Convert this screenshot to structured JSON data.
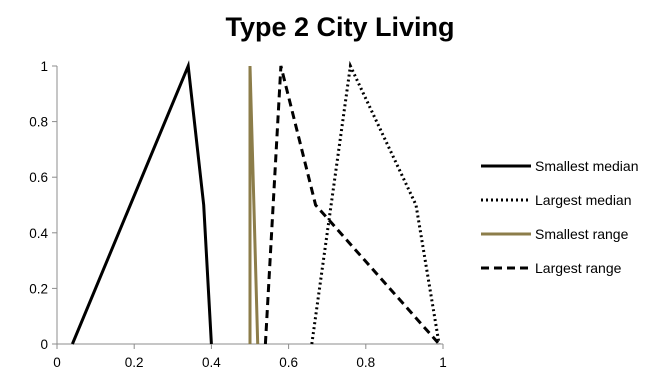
{
  "chart_data": {
    "type": "line",
    "title": "Type 2 City Living",
    "xlabel": "",
    "ylabel": "",
    "xlim": [
      0,
      1
    ],
    "ylim": [
      0,
      1
    ],
    "xticks": [
      "0",
      "0.2",
      "0.4",
      "0.6",
      "0.8",
      "1"
    ],
    "yticks": [
      "0",
      "0.2",
      "0.4",
      "0.6",
      "0.8",
      "1"
    ],
    "grid": false,
    "legend_position": "right",
    "series": [
      {
        "name": "Smallest median",
        "style": "solid",
        "color": "#000000",
        "points": [
          [
            0.04,
            0
          ],
          [
            0.34,
            1
          ],
          [
            0.38,
            0.5
          ],
          [
            0.4,
            0
          ]
        ]
      },
      {
        "name": "Largest median",
        "style": "dotted",
        "color": "#000000",
        "points": [
          [
            0.66,
            0
          ],
          [
            0.76,
            1
          ],
          [
            0.93,
            0.5
          ],
          [
            0.99,
            0
          ]
        ]
      },
      {
        "name": "Smallest range",
        "style": "solid",
        "color": "#8C7D4A",
        "points": [
          [
            0.5,
            0
          ],
          [
            0.5,
            1
          ],
          [
            0.51,
            0.5
          ],
          [
            0.52,
            0
          ]
        ]
      },
      {
        "name": "Largest range",
        "style": "dashed",
        "color": "#000000",
        "points": [
          [
            0.54,
            0
          ],
          [
            0.58,
            1
          ],
          [
            0.67,
            0.5
          ],
          [
            0.99,
            0
          ]
        ]
      }
    ]
  }
}
